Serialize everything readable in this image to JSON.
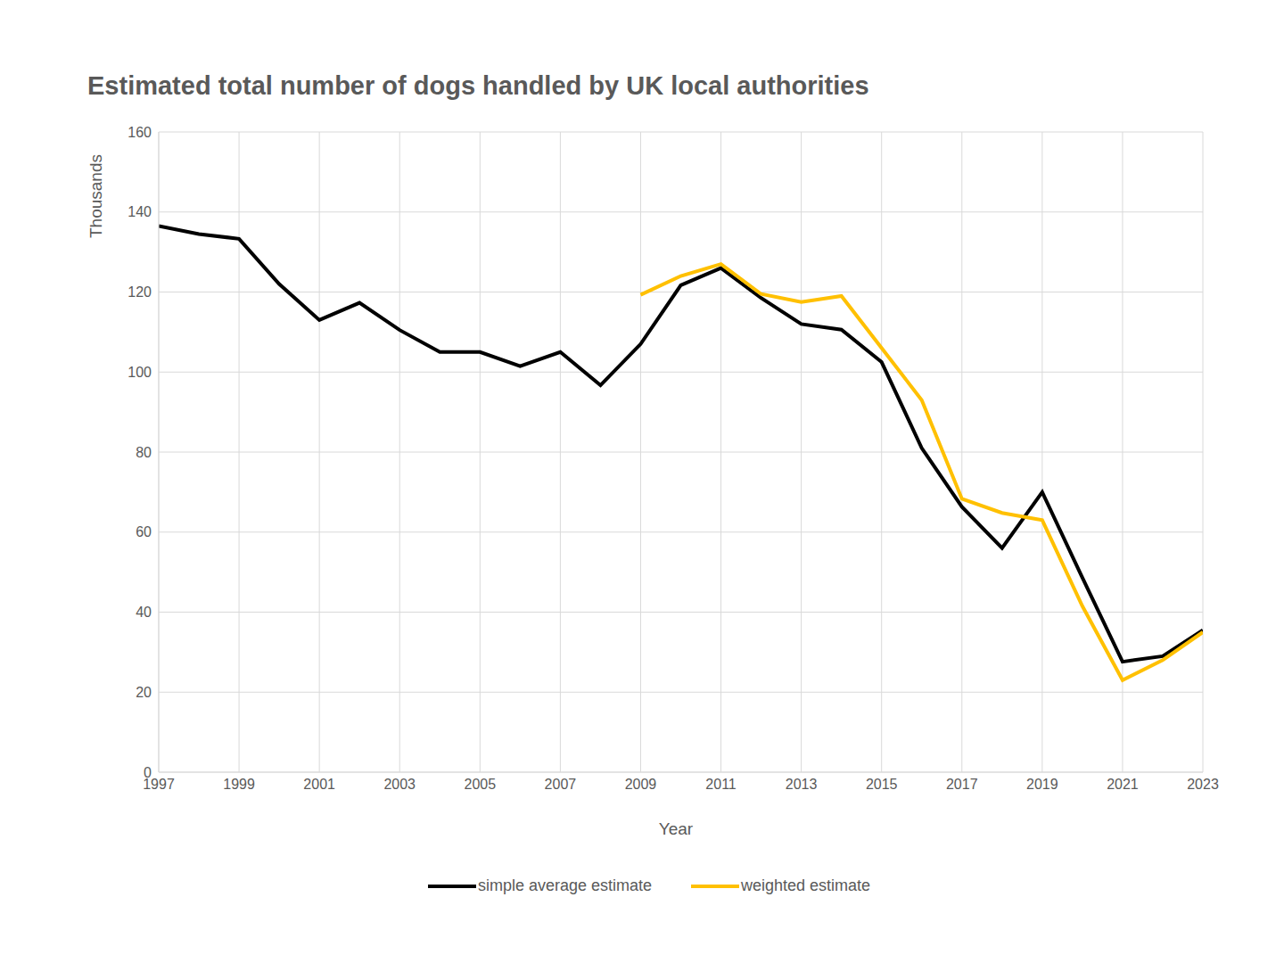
{
  "chart_data": {
    "type": "line",
    "title": "Estimated total number of dogs handled by UK local authorities",
    "x_label": "Year",
    "y_label": "Thousands",
    "x": [
      1997,
      1998,
      1999,
      2000,
      2001,
      2002,
      2003,
      2004,
      2005,
      2006,
      2007,
      2008,
      2009,
      2010,
      2011,
      2012,
      2013,
      2014,
      2015,
      2016,
      2017,
      2018,
      2019,
      2020,
      2021,
      2022,
      2023
    ],
    "series": [
      {
        "name": "simple average estimate",
        "color": "#000000",
        "values": [
          136.5,
          134.5,
          133.3,
          122,
          113,
          117.3,
          110.5,
          105,
          105,
          101.5,
          105,
          96.7,
          107,
          121.7,
          126,
          118.5,
          112,
          110.6,
          102.5,
          81,
          66.3,
          56,
          70,
          48.6,
          27.6,
          29,
          35.5
        ]
      },
      {
        "name": "weighted estimate",
        "color": "#FFC000",
        "values": [
          null,
          null,
          null,
          null,
          null,
          null,
          null,
          null,
          null,
          null,
          null,
          null,
          119.3,
          124,
          127,
          119.5,
          117.5,
          119,
          106,
          93,
          68.3,
          64.8,
          63,
          41.5,
          23,
          28,
          35
        ]
      }
    ],
    "xlim": [
      1997,
      2023
    ],
    "xticks": [
      1997,
      1999,
      2001,
      2003,
      2005,
      2007,
      2009,
      2011,
      2013,
      2015,
      2017,
      2019,
      2021,
      2023
    ],
    "ylim": [
      0,
      160
    ],
    "yticks": [
      0,
      20,
      40,
      60,
      80,
      100,
      120,
      140,
      160
    ],
    "grid": true,
    "legend": "bottom"
  }
}
